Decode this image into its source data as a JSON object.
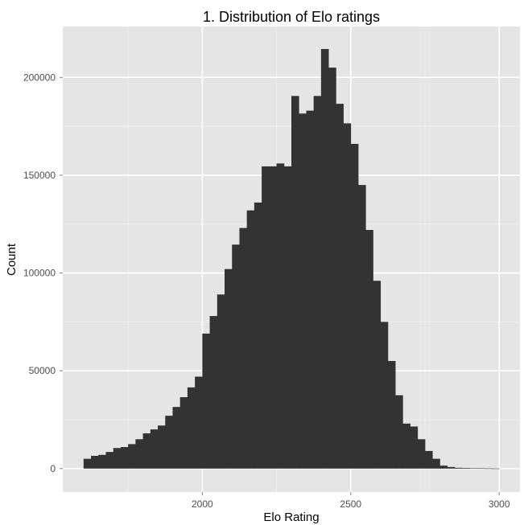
{
  "chart_data": {
    "type": "bar",
    "title": "1. Distribution of Elo ratings",
    "xlabel": "Elo Rating",
    "ylabel": "Count",
    "xlim": [
      1530,
      3070
    ],
    "ylim": [
      -12000,
      226000
    ],
    "x_ticks": [
      2000,
      2500,
      3000
    ],
    "x_minor_ticks": [
      1750,
      2250,
      2750
    ],
    "y_ticks": [
      0,
      50000,
      100000,
      150000,
      200000
    ],
    "y_minor_ticks": [
      25000,
      75000,
      125000,
      175000
    ],
    "bin_width": 25,
    "bin_starts": [
      1600,
      1625,
      1650,
      1675,
      1700,
      1725,
      1750,
      1775,
      1800,
      1825,
      1850,
      1875,
      1900,
      1925,
      1950,
      1975,
      2000,
      2025,
      2050,
      2075,
      2100,
      2125,
      2150,
      2175,
      2200,
      2225,
      2250,
      2275,
      2300,
      2325,
      2350,
      2375,
      2400,
      2425,
      2450,
      2475,
      2500,
      2525,
      2550,
      2575,
      2600,
      2625,
      2650,
      2675,
      2700,
      2725,
      2750,
      2775,
      2800,
      2825,
      2850,
      2875,
      2900,
      2925,
      2950,
      2975
    ],
    "values": [
      5000,
      6500,
      7000,
      8500,
      10500,
      11000,
      12500,
      15000,
      18000,
      20000,
      22000,
      27000,
      31500,
      36500,
      41500,
      47000,
      69000,
      78000,
      89000,
      102000,
      114500,
      123000,
      132000,
      136000,
      154500,
      154500,
      156000,
      154500,
      190500,
      181500,
      183000,
      190500,
      214500,
      205000,
      186500,
      176500,
      166000,
      145000,
      122000,
      96000,
      75000,
      55000,
      37500,
      23000,
      21500,
      15000,
      9000,
      5000,
      1500,
      800,
      400,
      300,
      200,
      150,
      100,
      50
    ],
    "grid": true,
    "legend": "none",
    "colors": {
      "panel": "#e5e5e5",
      "grid_major": "#ffffff",
      "grid_minor": "#f2f2f2",
      "bar": "#333333",
      "tick_label": "#4d4d4d"
    }
  }
}
